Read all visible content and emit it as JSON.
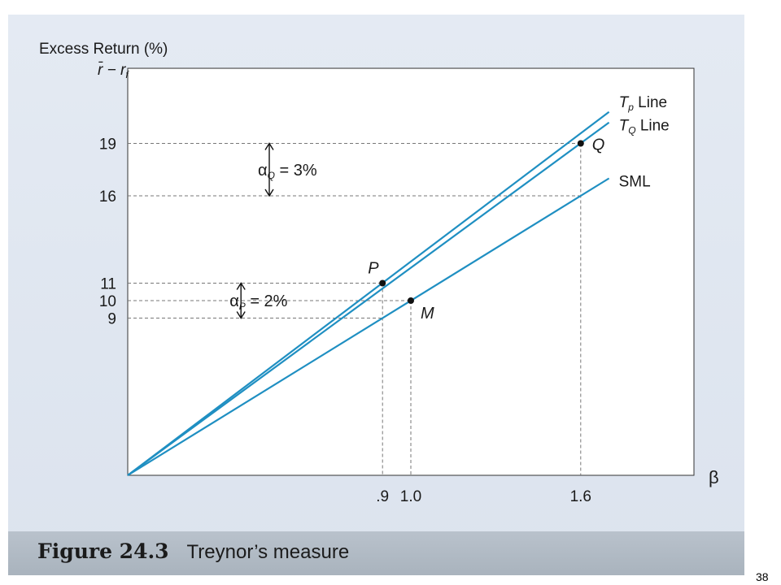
{
  "page_number": "38",
  "caption": {
    "figure_label": "Figure 24.3",
    "title": "Treynor’s measure"
  },
  "colors": {
    "line": "#1f8fc2",
    "axis": "#333333",
    "text": "#1a1a1a",
    "guide": "#777777"
  },
  "chart_data": {
    "type": "line",
    "ylabel_line1": "Excess Return (%)",
    "ylabel_line2": "r̄ − r",
    "ylabel_line2_sub": "f",
    "xlabel": "β",
    "xlim": [
      0,
      2.0
    ],
    "ylim": [
      0,
      23.3
    ],
    "x_ticks": [
      {
        "value": 0.9,
        "label": ".9"
      },
      {
        "value": 1.0,
        "label": "1.0"
      },
      {
        "value": 1.6,
        "label": "1.6"
      }
    ],
    "y_ticks": [
      {
        "value": 9,
        "label": "9"
      },
      {
        "value": 10,
        "label": "10"
      },
      {
        "value": 11,
        "label": "11"
      },
      {
        "value": 16,
        "label": "16"
      },
      {
        "value": 19,
        "label": "19"
      }
    ],
    "series": [
      {
        "name": "T",
        "sub": "p",
        "suffix": " Line",
        "x": [
          0,
          1.7
        ],
        "y": [
          0,
          20.8
        ]
      },
      {
        "name": "T",
        "sub": "Q",
        "suffix": " Line",
        "x": [
          0,
          1.7
        ],
        "y": [
          0,
          20.2
        ]
      },
      {
        "name": "SML",
        "sub": "",
        "suffix": "",
        "x": [
          0,
          1.7
        ],
        "y": [
          0,
          17.0
        ]
      }
    ],
    "points": [
      {
        "label": "P",
        "x": 0.9,
        "y": 11
      },
      {
        "label": "M",
        "x": 1.0,
        "y": 10
      },
      {
        "label": "Q",
        "x": 1.6,
        "y": 19
      }
    ],
    "annotations": [
      {
        "greek": "α",
        "sub": "Q",
        "text": " = 3%",
        "from": 16,
        "to": 19,
        "x": 0.5
      },
      {
        "greek": "α",
        "sub": "P",
        "text": " = 2%",
        "from": 9,
        "to": 11,
        "x": 0.4
      }
    ]
  }
}
